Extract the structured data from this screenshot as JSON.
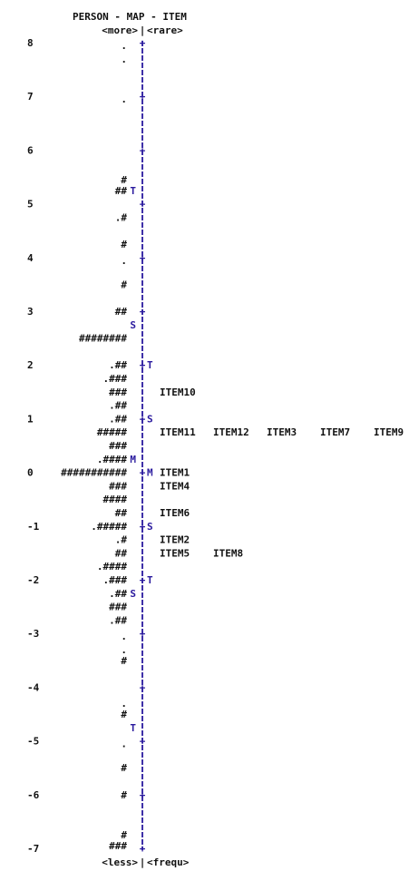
{
  "chart_data": {
    "type": "wright-map",
    "title": "PERSON - MAP - ITEM",
    "header_left": "<more>",
    "header_right": "<rare>",
    "footer_left": "<less>",
    "footer_right": "<frequ>",
    "separator": "|",
    "ylim": [
      -7,
      8
    ],
    "tick_labels": [
      "8",
      "7",
      "6",
      "5",
      "4",
      "3",
      "2",
      "1",
      "0",
      "-1",
      "-2",
      "-3",
      "-4",
      "-5",
      "-6",
      "-7"
    ],
    "tick_values": [
      8,
      7,
      6,
      5,
      4,
      3,
      2,
      1,
      0,
      -1,
      -2,
      -3,
      -4,
      -5,
      -6,
      -7
    ],
    "persons": [
      {
        "y": 7.95,
        "text": "."
      },
      {
        "y": 7.7,
        "text": "."
      },
      {
        "y": 6.95,
        "text": "."
      },
      {
        "y": 5.45,
        "text": "#"
      },
      {
        "y": 5.25,
        "text": "##"
      },
      {
        "y": 4.75,
        "text": ".#"
      },
      {
        "y": 4.25,
        "text": "#"
      },
      {
        "y": 3.95,
        "text": "."
      },
      {
        "y": 3.5,
        "text": "#"
      },
      {
        "y": 3.0,
        "text": "##"
      },
      {
        "y": 2.5,
        "text": "########"
      },
      {
        "y": 2.0,
        "text": ".##"
      },
      {
        "y": 1.75,
        "text": ".###"
      },
      {
        "y": 1.5,
        "text": "###"
      },
      {
        "y": 1.25,
        "text": ".##"
      },
      {
        "y": 1.0,
        "text": ".##"
      },
      {
        "y": 0.75,
        "text": "#####"
      },
      {
        "y": 0.5,
        "text": "###"
      },
      {
        "y": 0.25,
        "text": ".####"
      },
      {
        "y": 0.0,
        "text": "###########"
      },
      {
        "y": -0.25,
        "text": "###"
      },
      {
        "y": -0.5,
        "text": "####"
      },
      {
        "y": -0.75,
        "text": "##"
      },
      {
        "y": -1.0,
        "text": ".#####"
      },
      {
        "y": -1.25,
        "text": ".#"
      },
      {
        "y": -1.5,
        "text": "##"
      },
      {
        "y": -1.75,
        "text": ".####"
      },
      {
        "y": -2.0,
        "text": ".###"
      },
      {
        "y": -2.25,
        "text": ".##"
      },
      {
        "y": -2.5,
        "text": "###"
      },
      {
        "y": -2.75,
        "text": ".##"
      },
      {
        "y": -3.05,
        "text": "."
      },
      {
        "y": -3.3,
        "text": "."
      },
      {
        "y": -3.5,
        "text": "#"
      },
      {
        "y": -4.3,
        "text": "."
      },
      {
        "y": -4.5,
        "text": "#"
      },
      {
        "y": -5.05,
        "text": "."
      },
      {
        "y": -5.5,
        "text": "#"
      },
      {
        "y": -6.0,
        "text": "#"
      },
      {
        "y": -6.75,
        "text": "#"
      },
      {
        "y": -6.95,
        "text": "###"
      }
    ],
    "person_markers": [
      {
        "y": 5.25,
        "text": "T"
      },
      {
        "y": 2.75,
        "text": "S"
      },
      {
        "y": 0.25,
        "text": "M"
      },
      {
        "y": -2.25,
        "text": "S"
      },
      {
        "y": -4.75,
        "text": "T"
      }
    ],
    "item_markers": [
      {
        "y": 2.0,
        "text": "T"
      },
      {
        "y": 1.0,
        "text": "S"
      },
      {
        "y": 0.0,
        "text": "M"
      },
      {
        "y": -1.0,
        "text": "S"
      },
      {
        "y": -2.0,
        "text": "T"
      }
    ],
    "items": [
      {
        "y": 1.5,
        "labels": [
          "ITEM10"
        ]
      },
      {
        "y": 0.75,
        "labels": [
          "ITEM11",
          "ITEM12",
          "ITEM3",
          "ITEM7",
          "ITEM9"
        ]
      },
      {
        "y": 0.0,
        "labels": [
          "ITEM1"
        ]
      },
      {
        "y": -0.25,
        "labels": [
          "ITEM4"
        ]
      },
      {
        "y": -0.75,
        "labels": [
          "ITEM6"
        ]
      },
      {
        "y": -1.25,
        "labels": [
          "ITEM2"
        ]
      },
      {
        "y": -1.5,
        "labels": [
          "ITEM5",
          "ITEM8"
        ]
      }
    ],
    "colors": {
      "axis": "#2a1a9e",
      "text": "#111111"
    }
  }
}
